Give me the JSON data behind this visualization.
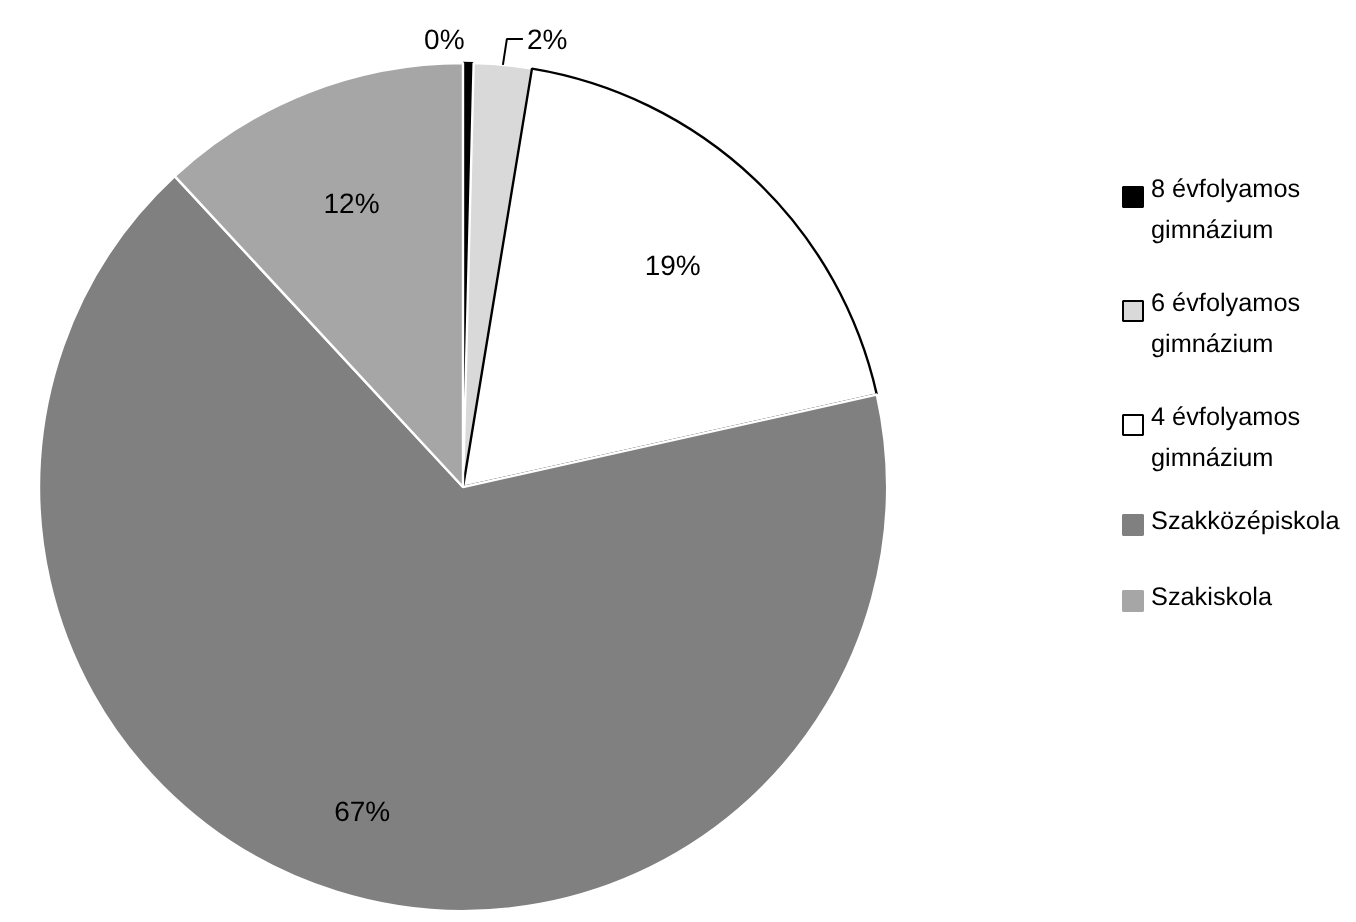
{
  "chart_data": {
    "type": "pie",
    "categories": [
      "8 évfolyamos gimnázium",
      "6 évfolyamos gimnázium",
      "4 évfolyamos gimnázium",
      "Szakközépiskola",
      "Szakiskola"
    ],
    "values": [
      0.4,
      2.2,
      18.9,
      66.6,
      11.9
    ],
    "value_labels": [
      "0%",
      "2%",
      "19%",
      "67%",
      "12%"
    ],
    "colors": [
      "#000000",
      "#d9d9d9",
      "#ffffff",
      "#808080",
      "#a6a6a6"
    ],
    "legend": "right"
  }
}
